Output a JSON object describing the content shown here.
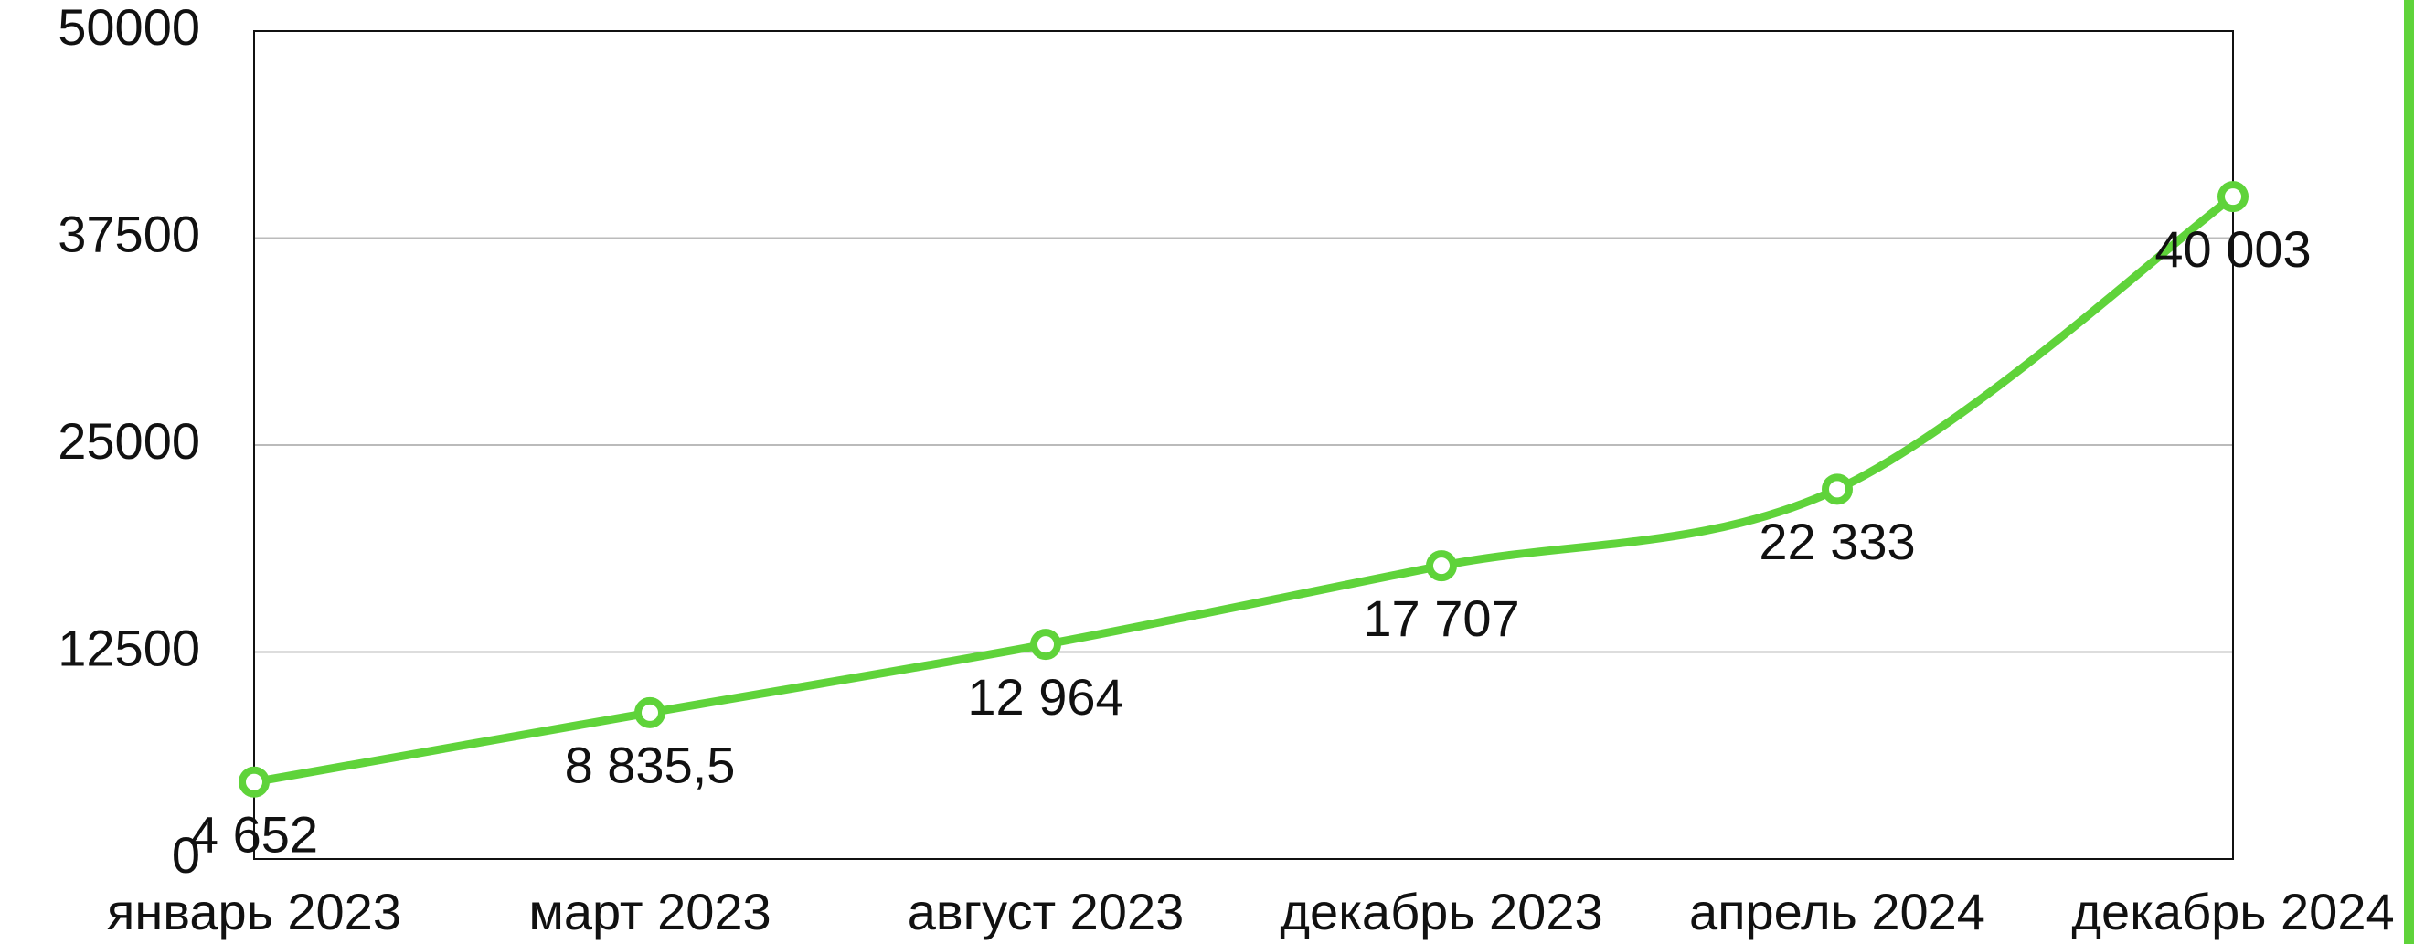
{
  "chart_data": {
    "type": "line",
    "categories": [
      "январь 2023",
      "март 2023",
      "август 2023",
      "декабрь 2023",
      "апрель 2024",
      "декабрь 2024"
    ],
    "series": [
      {
        "color": "#5fd33a",
        "values": [
          4652,
          8835.5,
          12964,
          17707,
          22333,
          40003
        ],
        "value_labels": [
          "4 652",
          "8 835,5",
          "12 964",
          "17 707",
          "22 333",
          "40 003"
        ]
      }
    ],
    "ylim": [
      0,
      50000
    ],
    "yticks": [
      0,
      12500,
      25000,
      37500,
      50000
    ],
    "grid": true
  }
}
